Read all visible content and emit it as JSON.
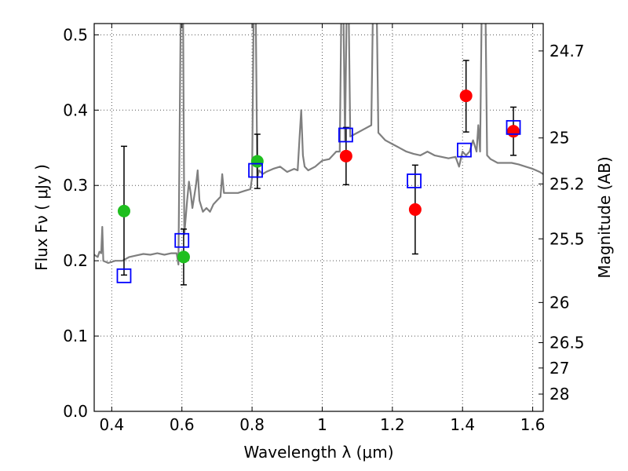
{
  "chart_data": {
    "type": "scatter",
    "xlabel": "Wavelength  λ (μm)",
    "ylabel": "Flux  Fν  ( μJy )",
    "ylabel_right": "Magnitude (AB)",
    "xlim": [
      0.35,
      1.63
    ],
    "ylim": [
      0.0,
      0.515
    ],
    "grid": true,
    "x_ticks": [
      "0.4",
      "0.6",
      "0.8",
      "1",
      "1.2",
      "1.4",
      "1.6"
    ],
    "x_tick_values": [
      0.4,
      0.6,
      0.8,
      1.0,
      1.2,
      1.4,
      1.6
    ],
    "y_ticks": [
      "0.0",
      "0.1",
      "0.2",
      "0.3",
      "0.4",
      "0.5"
    ],
    "y_tick_values": [
      0.0,
      0.1,
      0.2,
      0.3,
      0.4,
      0.5
    ],
    "right_ticks": [
      "24.7",
      "25",
      "25.2",
      "25.5",
      "26",
      "26.5",
      "27",
      "28"
    ],
    "right_tick_values": [
      24.7,
      25.0,
      25.2,
      25.5,
      26.0,
      26.5,
      27.0,
      28.0
    ],
    "colors": {
      "model": "#7f7f7f",
      "green": "#1fbf1f",
      "red": "#ff0000",
      "box": "#0000ff",
      "error": "#000000",
      "grid": "#555555"
    },
    "model_spectrum": [
      [
        0.35,
        0.208
      ],
      [
        0.36,
        0.205
      ],
      [
        0.365,
        0.212
      ],
      [
        0.37,
        0.21
      ],
      [
        0.373,
        0.245
      ],
      [
        0.376,
        0.2
      ],
      [
        0.39,
        0.197
      ],
      [
        0.41,
        0.2
      ],
      [
        0.43,
        0.2
      ],
      [
        0.45,
        0.205
      ],
      [
        0.47,
        0.207
      ],
      [
        0.49,
        0.209
      ],
      [
        0.51,
        0.208
      ],
      [
        0.53,
        0.21
      ],
      [
        0.55,
        0.208
      ],
      [
        0.57,
        0.21
      ],
      [
        0.585,
        0.21
      ],
      [
        0.59,
        0.195
      ],
      [
        0.597,
        0.55
      ],
      [
        0.603,
        0.55
      ],
      [
        0.607,
        0.235
      ],
      [
        0.615,
        0.28
      ],
      [
        0.62,
        0.305
      ],
      [
        0.625,
        0.29
      ],
      [
        0.63,
        0.27
      ],
      [
        0.64,
        0.3
      ],
      [
        0.645,
        0.32
      ],
      [
        0.65,
        0.28
      ],
      [
        0.66,
        0.265
      ],
      [
        0.67,
        0.27
      ],
      [
        0.68,
        0.265
      ],
      [
        0.69,
        0.275
      ],
      [
        0.7,
        0.28
      ],
      [
        0.71,
        0.285
      ],
      [
        0.715,
        0.315
      ],
      [
        0.72,
        0.29
      ],
      [
        0.74,
        0.29
      ],
      [
        0.76,
        0.29
      ],
      [
        0.78,
        0.293
      ],
      [
        0.795,
        0.295
      ],
      [
        0.8,
        0.31
      ],
      [
        0.805,
        0.55
      ],
      [
        0.81,
        0.55
      ],
      [
        0.815,
        0.31
      ],
      [
        0.82,
        0.32
      ],
      [
        0.83,
        0.315
      ],
      [
        0.84,
        0.318
      ],
      [
        0.86,
        0.322
      ],
      [
        0.88,
        0.325
      ],
      [
        0.9,
        0.318
      ],
      [
        0.92,
        0.322
      ],
      [
        0.93,
        0.32
      ],
      [
        0.935,
        0.36
      ],
      [
        0.94,
        0.4
      ],
      [
        0.945,
        0.34
      ],
      [
        0.95,
        0.325
      ],
      [
        0.96,
        0.32
      ],
      [
        0.98,
        0.325
      ],
      [
        1.0,
        0.333
      ],
      [
        1.02,
        0.335
      ],
      [
        1.04,
        0.345
      ],
      [
        1.05,
        0.345
      ],
      [
        1.055,
        0.55
      ],
      [
        1.06,
        0.55
      ],
      [
        1.065,
        0.36
      ],
      [
        1.07,
        0.55
      ],
      [
        1.075,
        0.55
      ],
      [
        1.08,
        0.365
      ],
      [
        1.1,
        0.37
      ],
      [
        1.12,
        0.375
      ],
      [
        1.14,
        0.38
      ],
      [
        1.145,
        0.55
      ],
      [
        1.155,
        0.55
      ],
      [
        1.16,
        0.37
      ],
      [
        1.18,
        0.36
      ],
      [
        1.2,
        0.355
      ],
      [
        1.22,
        0.35
      ],
      [
        1.24,
        0.345
      ],
      [
        1.26,
        0.342
      ],
      [
        1.28,
        0.34
      ],
      [
        1.3,
        0.345
      ],
      [
        1.32,
        0.34
      ],
      [
        1.34,
        0.338
      ],
      [
        1.36,
        0.336
      ],
      [
        1.38,
        0.338
      ],
      [
        1.39,
        0.325
      ],
      [
        1.4,
        0.345
      ],
      [
        1.41,
        0.34
      ],
      [
        1.42,
        0.345
      ],
      [
        1.43,
        0.36
      ],
      [
        1.44,
        0.345
      ],
      [
        1.445,
        0.38
      ],
      [
        1.45,
        0.345
      ],
      [
        1.455,
        0.55
      ],
      [
        1.465,
        0.55
      ],
      [
        1.47,
        0.34
      ],
      [
        1.48,
        0.335
      ],
      [
        1.5,
        0.33
      ],
      [
        1.52,
        0.33
      ],
      [
        1.54,
        0.33
      ],
      [
        1.56,
        0.328
      ],
      [
        1.58,
        0.325
      ],
      [
        1.6,
        0.322
      ],
      [
        1.62,
        0.318
      ],
      [
        1.63,
        0.315
      ]
    ],
    "series": [
      {
        "marker": "circle",
        "color": "green",
        "points": [
          {
            "x": 0.435,
            "y": 0.266,
            "err_low": 0.181,
            "err_high": 0.352
          },
          {
            "x": 0.605,
            "y": 0.205,
            "err_low": 0.168,
            "err_high": 0.242
          },
          {
            "x": 0.815,
            "y": 0.332,
            "err_low": 0.296,
            "err_high": 0.368
          }
        ]
      },
      {
        "marker": "circle",
        "color": "red",
        "points": [
          {
            "x": 1.068,
            "y": 0.339,
            "err_low": 0.301,
            "err_high": 0.377
          },
          {
            "x": 1.265,
            "y": 0.268,
            "err_low": 0.209,
            "err_high": 0.327
          },
          {
            "x": 1.41,
            "y": 0.419,
            "err_low": 0.371,
            "err_high": 0.466
          },
          {
            "x": 1.545,
            "y": 0.372,
            "err_low": 0.34,
            "err_high": 0.404
          }
        ]
      },
      {
        "marker": "open-square",
        "color": "box",
        "points": [
          {
            "x": 0.435,
            "y": 0.18
          },
          {
            "x": 0.6,
            "y": 0.227
          },
          {
            "x": 0.81,
            "y": 0.32
          },
          {
            "x": 1.067,
            "y": 0.367
          },
          {
            "x": 1.262,
            "y": 0.306
          },
          {
            "x": 1.405,
            "y": 0.347
          },
          {
            "x": 1.545,
            "y": 0.377
          }
        ]
      }
    ]
  }
}
